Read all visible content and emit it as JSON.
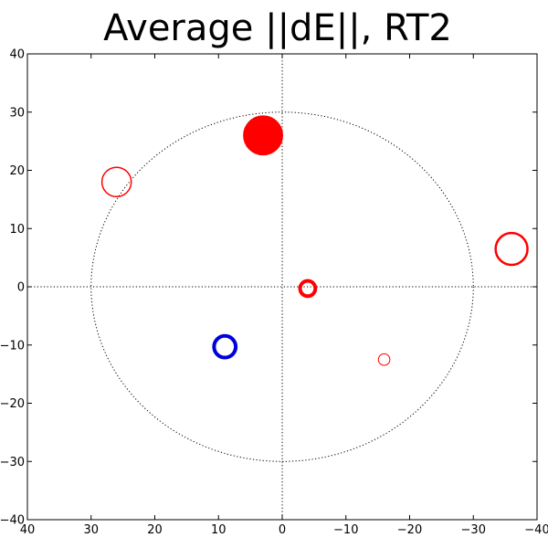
{
  "chart_data": {
    "type": "scatter",
    "title": "Average ||dE||, RT2",
    "xlabel": "",
    "ylabel": "",
    "xlim": [
      40,
      -40
    ],
    "ylim": [
      -40,
      40
    ],
    "x_ticks": [
      40,
      30,
      20,
      10,
      0,
      -10,
      -20,
      -30,
      -40
    ],
    "y_ticks": [
      40,
      30,
      20,
      10,
      0,
      -10,
      -20,
      -30,
      -40
    ],
    "x_tick_labels": [
      "40",
      "30",
      "20",
      "10",
      "0",
      "−10",
      "−20",
      "−30",
      "−40"
    ],
    "y_tick_labels": [
      "40",
      "30",
      "20",
      "10",
      "0",
      "−10",
      "−20",
      "−30",
      "−40"
    ],
    "grid": false,
    "reference_circle": {
      "radius": 30,
      "style": "dotted",
      "color": "#000000"
    },
    "reference_lines": {
      "x": 0,
      "y": 0,
      "style": "dotted",
      "color": "#000000"
    },
    "points": [
      {
        "x": 3,
        "y": 26,
        "radius": 3.0,
        "color": "#ff0000",
        "filled": true,
        "stroke_width": 2
      },
      {
        "x": 26,
        "y": 18,
        "radius": 2.3,
        "color": "#ff0000",
        "filled": false,
        "stroke_width": 1.5
      },
      {
        "x": -36,
        "y": 6.5,
        "radius": 2.5,
        "color": "#ff0000",
        "filled": false,
        "stroke_width": 2.5
      },
      {
        "x": -4,
        "y": -0.3,
        "radius": 1.2,
        "color": "#ff0000",
        "filled": false,
        "stroke_width": 4
      },
      {
        "x": 9,
        "y": -10.3,
        "radius": 1.7,
        "color": "#0000dd",
        "filled": false,
        "stroke_width": 4
      },
      {
        "x": -16,
        "y": -12.5,
        "radius": 0.9,
        "color": "#ff0000",
        "filled": false,
        "stroke_width": 1
      }
    ]
  }
}
